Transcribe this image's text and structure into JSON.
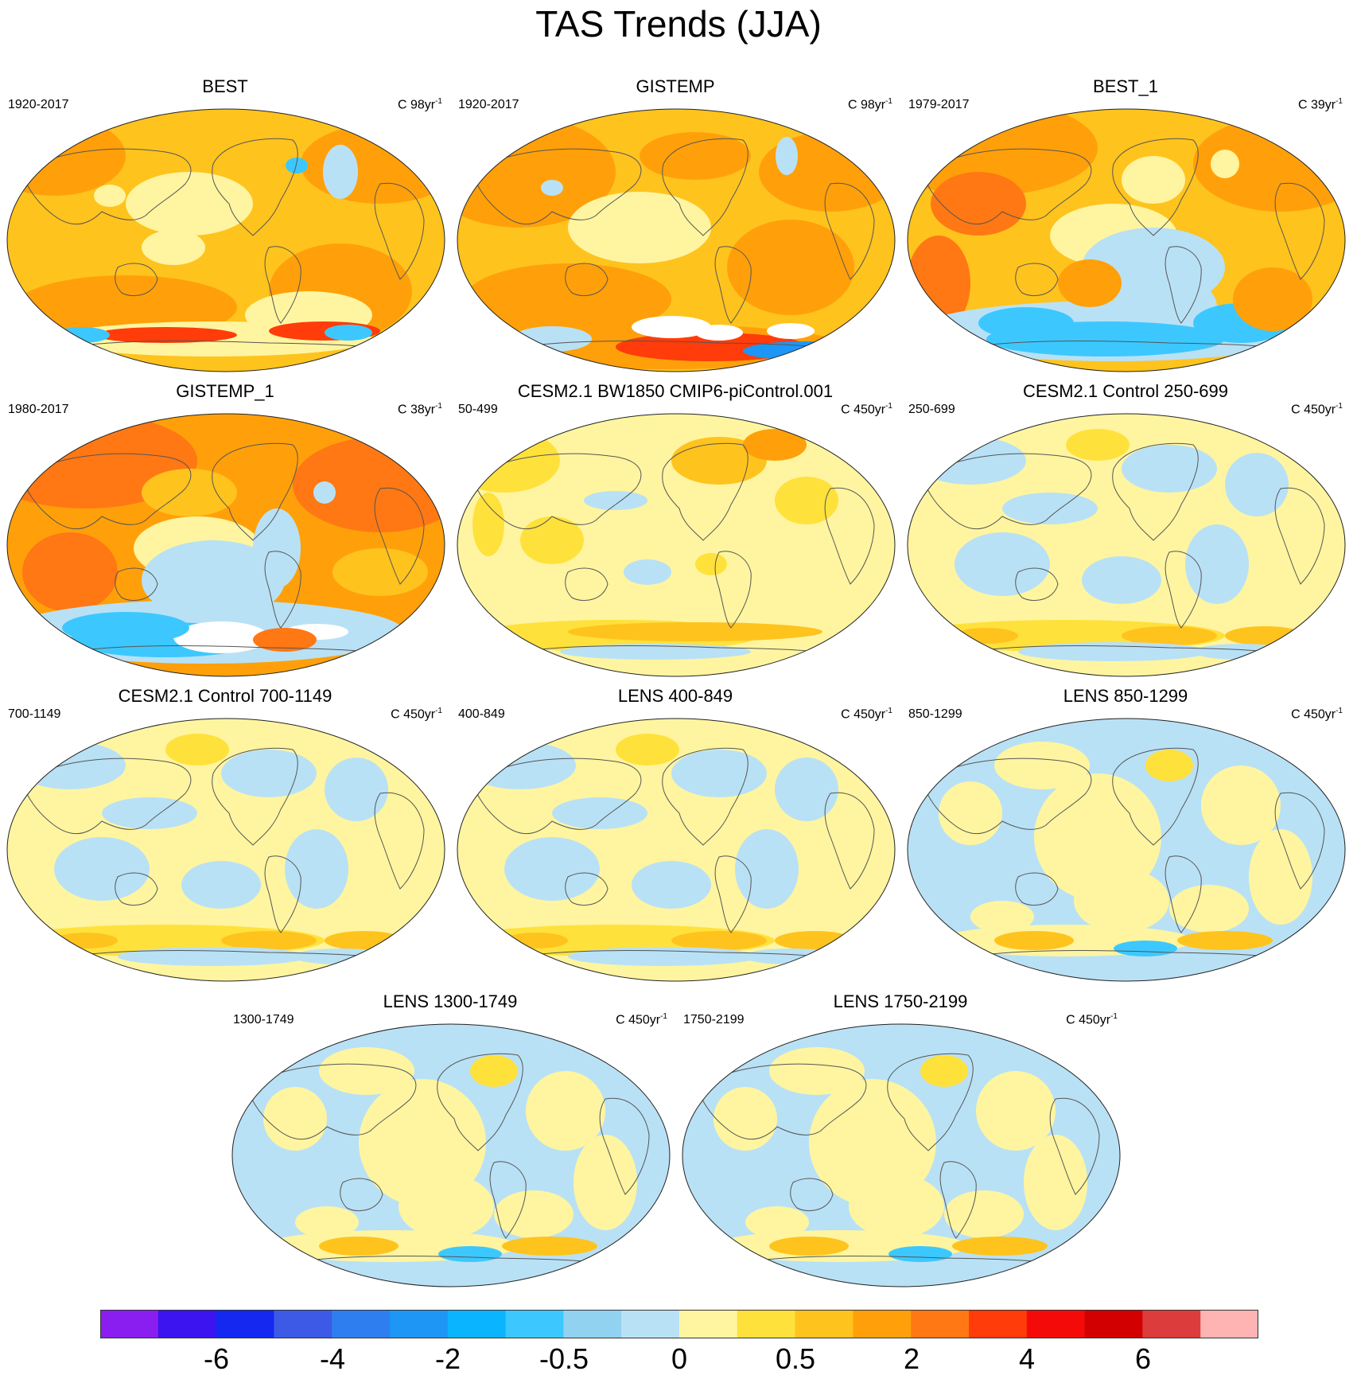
{
  "title": "TAS Trends (JJA)",
  "panels": [
    {
      "title": "BEST",
      "period": "1920-2017",
      "units": "C 98yr",
      "units_exp": "-1",
      "style": "obs_warm"
    },
    {
      "title": "GISTEMP",
      "period": "1920-2017",
      "units": "C 98yr",
      "units_exp": "-1",
      "style": "obs_warm_gaps"
    },
    {
      "title": "BEST_1",
      "period": "1979-2017",
      "units": "C 39yr",
      "units_exp": "-1",
      "style": "obs_recent"
    },
    {
      "title": "GISTEMP_1",
      "period": "1980-2017",
      "units": "C 38yr",
      "units_exp": "-1",
      "style": "obs_recent_gaps"
    },
    {
      "title": "CESM2.1 BW1850 CMIP6-piControl.001",
      "period": "50-499",
      "units": "C 450yr",
      "units_exp": "-1",
      "style": "control_warmish"
    },
    {
      "title": "CESM2.1 Control 250-699",
      "period": "250-699",
      "units": "C 450yr",
      "units_exp": "-1",
      "style": "control_mixed"
    },
    {
      "title": "CESM2.1 Control 700-1149",
      "period": "700-1149",
      "units": "C 450yr",
      "units_exp": "-1",
      "style": "control_mixed"
    },
    {
      "title": "LENS 400-849",
      "period": "400-849",
      "units": "C 450yr",
      "units_exp": "-1",
      "style": "control_mixed"
    },
    {
      "title": "LENS 850-1299",
      "period": "850-1299",
      "units": "C 450yr",
      "units_exp": "-1",
      "style": "control_cool"
    },
    {
      "title": "LENS 1300-1749",
      "period": "1300-1749",
      "units": "C 450yr",
      "units_exp": "-1",
      "style": "control_cool"
    },
    {
      "title": "LENS 1750-2199",
      "period": "1750-2199",
      "units": "C 450yr",
      "units_exp": "-1",
      "style": "control_cool"
    }
  ],
  "colorbar": {
    "colors": [
      "#8a1ef0",
      "#3c14f0",
      "#1428f0",
      "#3c5ae6",
      "#2f7ef0",
      "#1e96f5",
      "#0ab4ff",
      "#3cc8ff",
      "#91d2f0",
      "#b9e1f5",
      "#fff5a0",
      "#ffe13c",
      "#ffc31e",
      "#ffa00a",
      "#ff7814",
      "#ff3c0a",
      "#f50a0a",
      "#d20000",
      "#dc3c3c",
      "#ffb4b4"
    ],
    "labels": [
      "-6",
      "-4",
      "-2",
      "-0.5",
      "0",
      "0.5",
      "2",
      "4",
      "6"
    ]
  }
}
